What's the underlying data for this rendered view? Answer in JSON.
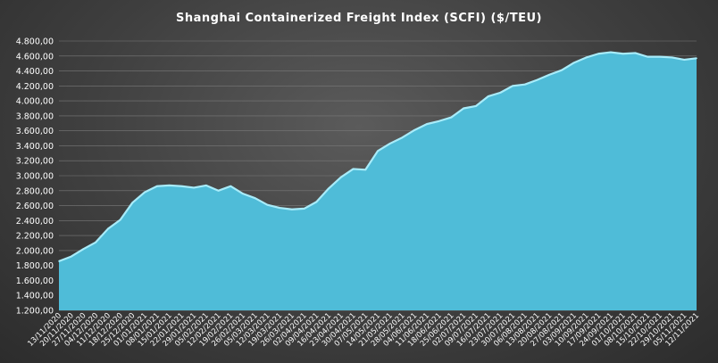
{
  "chart_data": {
    "type": "area",
    "title": "Shanghai Containerized Freight Index  (SCFI) ($/TEU)",
    "xlabel": "",
    "ylabel": "",
    "ylim": [
      1200,
      4800
    ],
    "yticks": [
      "1.200,00",
      "1.400,00",
      "1.600,00",
      "1.800,00",
      "2.000,00",
      "2.200,00",
      "2.400,00",
      "2.600,00",
      "2.800,00",
      "3.000,00",
      "3.200,00",
      "3.400,00",
      "3.600,00",
      "3.800,00",
      "4.000,00",
      "4.200,00",
      "4.400,00",
      "4.600,00",
      "4.800,00"
    ],
    "grid": true,
    "legend": "none",
    "colors": {
      "area_fill": "#4fbcd8",
      "area_line": "#a8ecfa"
    },
    "x": [
      "13/11/2020",
      "20/11/2020",
      "27/11/2020",
      "04/12/2020",
      "11/12/2020",
      "18/12/2020",
      "25/12/2020",
      "01/01/2021",
      "08/01/2021",
      "15/01/2021",
      "22/01/2021",
      "29/01/2021",
      "05/02/2021",
      "12/02/2021",
      "19/02/2021",
      "26/02/2021",
      "05/03/2021",
      "12/03/2021",
      "19/03/2021",
      "26/03/2021",
      "02/04/2021",
      "09/04/2021",
      "16/04/2021",
      "23/04/2021",
      "30/04/2021",
      "07/05/2021",
      "14/05/2021",
      "21/05/2021",
      "28/05/2021",
      "04/06/2021",
      "11/06/2021",
      "18/06/2021",
      "25/06/2021",
      "02/07/2021",
      "09/07/2021",
      "16/07/2021",
      "23/07/2021",
      "30/07/2021",
      "06/08/2021",
      "13/08/2021",
      "20/08/2021",
      "27/08/2021",
      "03/09/2021",
      "10/09/2021",
      "17/09/2021",
      "24/09/2021",
      "01/10/2021",
      "08/10/2021",
      "15/10/2021",
      "22/10/2021",
      "29/10/2021",
      "05/11/2021",
      "12/11/2021"
    ],
    "xtick_labels": [
      "13/11/2020",
      "20/11/2020",
      "27/11/2020",
      "04/12/2020",
      "11/12/2020",
      "18/12/2020",
      "25/12/2020",
      "01/01/2021",
      "08/01/2021",
      "15/01/2021",
      "22/01/2021",
      "29/01/2021",
      "05/02/2021",
      "12/02/2021",
      "19/02/2021",
      "26/02/2021",
      "05/03/2021",
      "12/03/2021",
      "19/03/2021",
      "26/03/2021",
      "02/04/2021",
      "09/04/2021",
      "16/04/2021",
      "23/04/2021",
      "30/04/2021",
      "07/05/2021",
      "14/05/2021",
      "21/05/2021",
      "28/05/2021",
      "04/06/2021",
      "11/06/2021",
      "18/06/2021",
      "25/06/2021",
      "02/07/2021",
      "09/07/2021",
      "16/07/2021",
      "23/07/2021",
      "30/07/2021",
      "06/08/2021",
      "13/08/2021",
      "20/08/2021",
      "27/08/2021",
      "03/09/2021",
      "10/09/2021",
      "17/09/2021",
      "24/09/2021",
      "01/10/2021",
      "08/10/2021",
      "15/10/2021",
      "22/10/2021",
      "29/10/2021",
      "05/11/2021",
      "12/11/2021"
    ],
    "series": [
      {
        "values": [
          1857,
          1920,
          2020,
          2110,
          2290,
          2410,
          2640,
          2780,
          2860,
          2870,
          2860,
          2840,
          2870,
          2800,
          2860,
          2760,
          2700,
          2610,
          2570,
          2550,
          2560,
          2650,
          2830,
          2980,
          3090,
          3080,
          3330,
          3430,
          3510,
          3610,
          3690,
          3730,
          3780,
          3900,
          3930,
          4060,
          4110,
          4200,
          4220,
          4280,
          4350,
          4410,
          4510,
          4580,
          4630,
          4650,
          4630,
          4640,
          4590,
          4590,
          4580,
          4550,
          4570
        ]
      }
    ]
  }
}
